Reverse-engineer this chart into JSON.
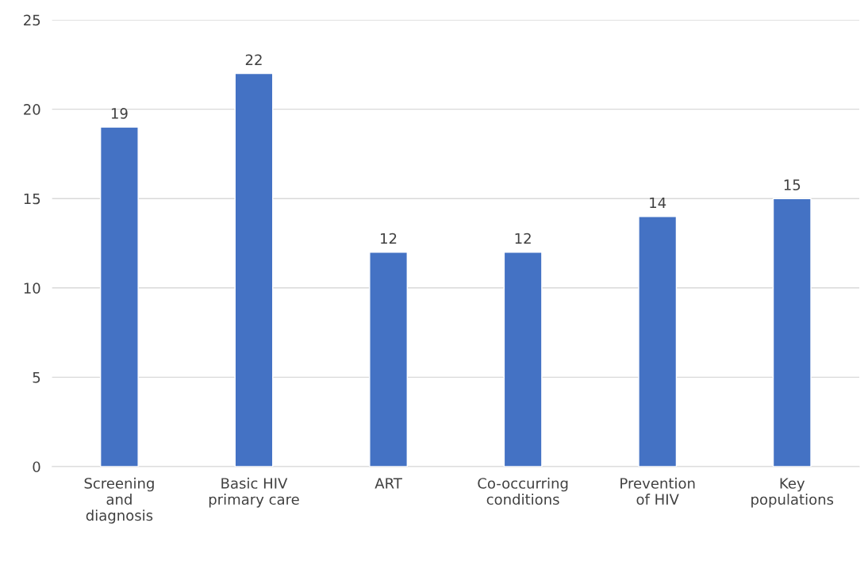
{
  "chart_data": {
    "type": "bar",
    "categories": [
      "Screening\nand\ndiagnosis",
      "Basic HIV\nprimary care",
      "ART",
      "Co-occurring\nconditions",
      "Prevention\nof HIV",
      "Key\npopulations"
    ],
    "values": [
      19,
      22,
      12,
      12,
      14,
      15
    ],
    "color": "#4472c4",
    "ylim": [
      0,
      25
    ],
    "yticks": [
      0,
      5,
      10,
      15,
      20,
      25
    ],
    "grid": "y",
    "data_labels": true
  }
}
